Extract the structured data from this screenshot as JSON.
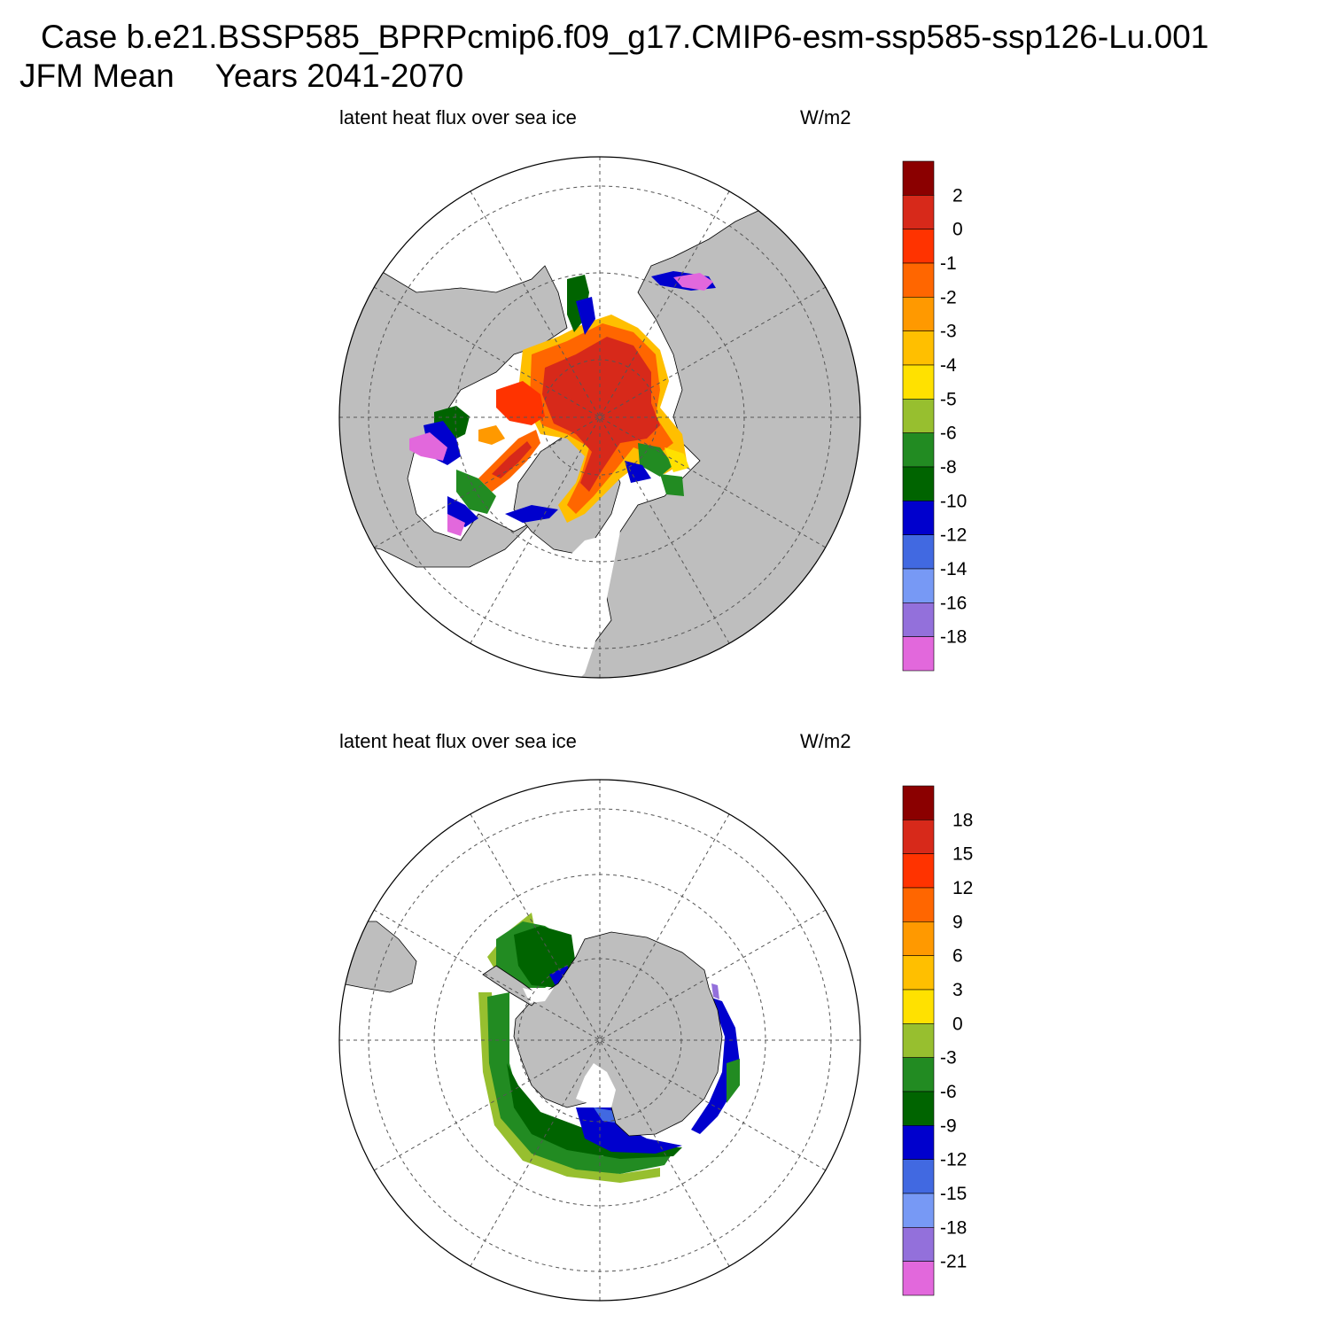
{
  "title": {
    "case_line": "Case b.e21.BSSP585_BPRPcmip6.f09_g17.CMIP6-esm-ssp585-ssp126-Lu.001",
    "season": "JFM Mean",
    "years": "Years 2041-2070"
  },
  "colors": {
    "land": "#bebebe",
    "ocean": "#ffffff",
    "grid": "#555555"
  },
  "chart_data": [
    {
      "type": "heatmap",
      "projection": "polar-stereographic-north",
      "title": "latent heat flux over sea ice",
      "units": "W/m2",
      "colorbar": {
        "tick_labels": [
          "2",
          "0",
          "-1",
          "-2",
          "-3",
          "-4",
          "-5",
          "-6",
          "-8",
          "-10",
          "-12",
          "-14",
          "-16",
          "-18"
        ],
        "colors": [
          "#8b0000",
          "#d7291a",
          "#ff3300",
          "#ff6600",
          "#ff9900",
          "#ffbf00",
          "#ffe100",
          "#97bf2f",
          "#228b22",
          "#006400",
          "#0000cd",
          "#4169e1",
          "#7799f5",
          "#9370db",
          "#e268dc"
        ]
      }
    },
    {
      "type": "heatmap",
      "projection": "polar-stereographic-south",
      "title": "latent heat flux over sea ice",
      "units": "W/m2",
      "colorbar": {
        "tick_labels": [
          "18",
          "15",
          "12",
          "9",
          "6",
          "3",
          "0",
          "-3",
          "-6",
          "-9",
          "-12",
          "-15",
          "-18",
          "-21"
        ],
        "colors": [
          "#8b0000",
          "#d7291a",
          "#ff3300",
          "#ff6600",
          "#ff9900",
          "#ffbf00",
          "#ffe100",
          "#97bf2f",
          "#228b22",
          "#006400",
          "#0000cd",
          "#4169e1",
          "#7799f5",
          "#9370db",
          "#e268dc"
        ]
      }
    }
  ]
}
